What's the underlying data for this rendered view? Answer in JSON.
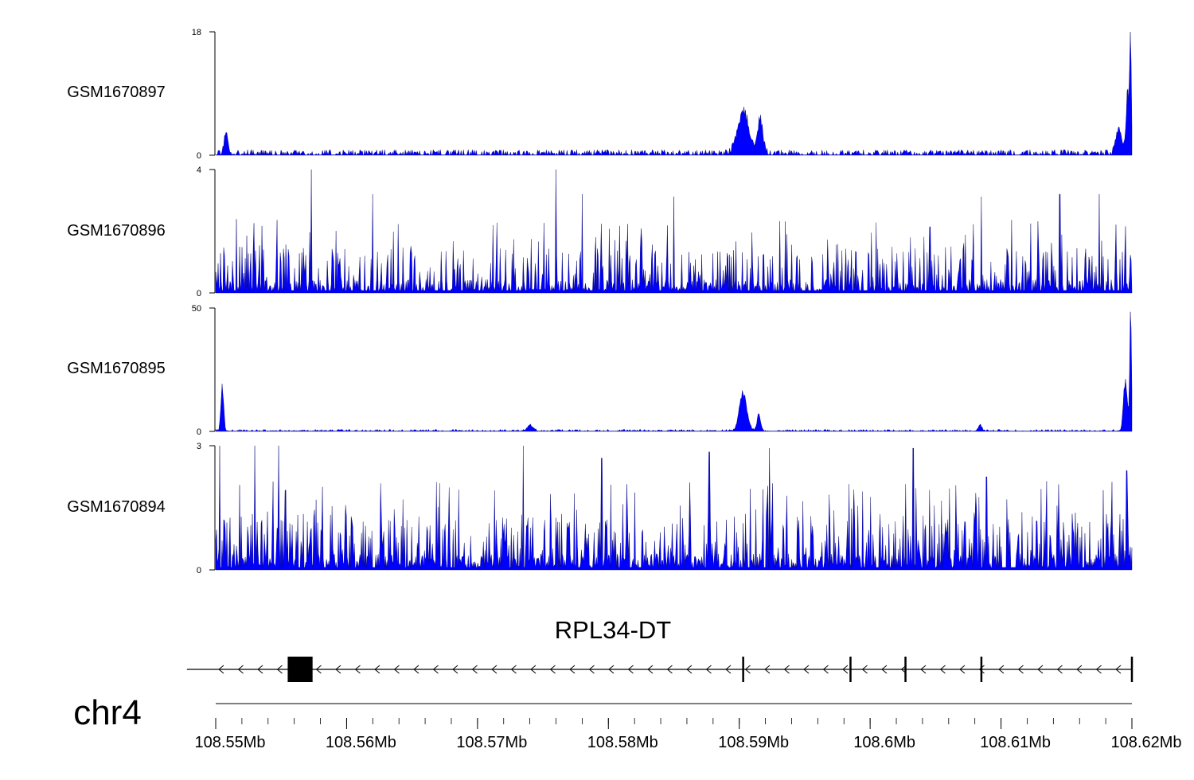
{
  "colors": {
    "signal": "#0000ff",
    "axis": "#000000",
    "gene": "#000000"
  },
  "chart_data": {
    "type": "area",
    "tracks": [
      {
        "name": "GSM1670897",
        "ylim": [
          0,
          18
        ],
        "ytick_labels": [
          "0",
          "18"
        ]
      },
      {
        "name": "GSM1670896",
        "ylim": [
          0,
          4
        ],
        "ytick_labels": [
          "0",
          "4"
        ]
      },
      {
        "name": "GSM1670895",
        "ylim": [
          0,
          50
        ],
        "ytick_labels": [
          "0",
          "50"
        ]
      },
      {
        "name": "GSM1670894",
        "ylim": [
          0,
          3
        ],
        "ytick_labels": [
          "0",
          "3"
        ]
      }
    ],
    "xlim": [
      108.55,
      108.62
    ],
    "x_ticks": [
      108.55,
      108.56,
      108.57,
      108.58,
      108.59,
      108.6,
      108.61,
      108.62
    ],
    "x_tick_labels": [
      "108.55Mb",
      "108.56Mb",
      "108.57Mb",
      "108.58Mb",
      "108.59Mb",
      "108.6Mb",
      "108.61Mb",
      "108.62Mb"
    ],
    "gene": {
      "name": "RPL34-DT",
      "strand": "-",
      "start": 108.5478,
      "end": 108.62,
      "exons": [
        [
          108.5555,
          108.5574
        ]
      ],
      "ticks": [
        108.5903,
        108.5985,
        108.6027,
        108.6085,
        108.62
      ]
    },
    "chromosome": "chr4"
  }
}
